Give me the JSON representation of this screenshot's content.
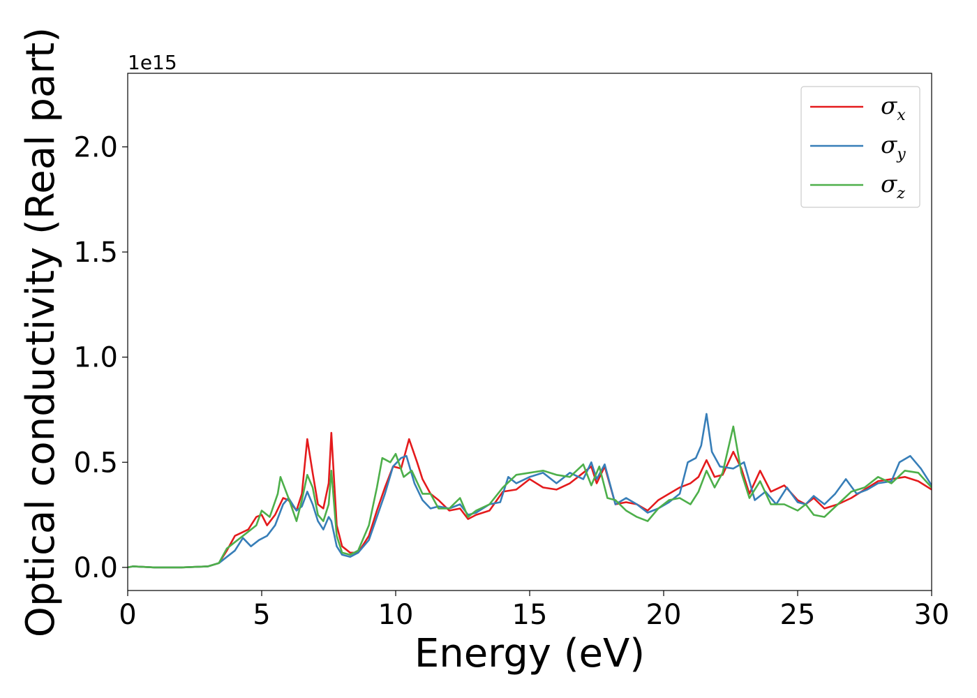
{
  "chart_data": {
    "type": "line",
    "title": "",
    "xlabel": "Energy (eV)",
    "ylabel": "Optical conductivity (Real part)",
    "y_offset_label": "1e15",
    "xlim": [
      0,
      30
    ],
    "ylim": [
      -0.11,
      2.35
    ],
    "x_ticks": [
      0,
      5,
      10,
      15,
      20,
      25,
      30
    ],
    "x_tick_labels": [
      "0",
      "5",
      "10",
      "15",
      "20",
      "25",
      "30"
    ],
    "y_ticks": [
      0.0,
      0.5,
      1.0,
      1.5,
      2.0
    ],
    "y_tick_labels": [
      "0.0",
      "0.5",
      "1.0",
      "1.5",
      "2.0"
    ],
    "grid": false,
    "legend_position": "top-right",
    "series": [
      {
        "name": "σx",
        "symbol": "σ",
        "subscript": "x",
        "color": "#e41a1c",
        "x": [
          0,
          0.2,
          1,
          2,
          3,
          3.4,
          3.7,
          4,
          4.5,
          4.8,
          5.0,
          5.2,
          5.5,
          5.8,
          6.0,
          6.3,
          6.5,
          6.7,
          6.9,
          7.1,
          7.3,
          7.5,
          7.6,
          7.8,
          8.0,
          8.3,
          8.6,
          9.0,
          9.3,
          9.6,
          9.9,
          10.2,
          10.5,
          10.8,
          11.0,
          11.3,
          11.6,
          12.0,
          12.4,
          12.7,
          13.0,
          13.5,
          14.0,
          14.5,
          15.0,
          15.5,
          16.0,
          16.5,
          17.0,
          17.3,
          17.5,
          17.8,
          18.2,
          18.6,
          19.0,
          19.4,
          19.8,
          20.2,
          20.6,
          21.0,
          21.3,
          21.6,
          21.9,
          22.2,
          22.6,
          22.9,
          23.2,
          23.6,
          24.0,
          24.5,
          25.0,
          25.3,
          25.6,
          26.0,
          26.5,
          27.0,
          27.5,
          28.0,
          28.5,
          29.0,
          29.5,
          30.0
        ],
        "y": [
          0.0,
          0.005,
          0.0,
          0.0,
          0.005,
          0.02,
          0.08,
          0.15,
          0.18,
          0.24,
          0.25,
          0.2,
          0.25,
          0.33,
          0.32,
          0.27,
          0.35,
          0.61,
          0.45,
          0.3,
          0.28,
          0.4,
          0.64,
          0.2,
          0.1,
          0.07,
          0.07,
          0.15,
          0.27,
          0.38,
          0.48,
          0.47,
          0.61,
          0.5,
          0.42,
          0.35,
          0.32,
          0.27,
          0.28,
          0.23,
          0.25,
          0.27,
          0.36,
          0.37,
          0.42,
          0.38,
          0.37,
          0.4,
          0.45,
          0.48,
          0.4,
          0.48,
          0.3,
          0.31,
          0.3,
          0.27,
          0.32,
          0.35,
          0.38,
          0.4,
          0.43,
          0.51,
          0.43,
          0.44,
          0.55,
          0.47,
          0.35,
          0.46,
          0.36,
          0.39,
          0.32,
          0.3,
          0.33,
          0.28,
          0.3,
          0.33,
          0.37,
          0.41,
          0.42,
          0.43,
          0.41,
          0.37
        ]
      },
      {
        "name": "σy",
        "symbol": "σ",
        "subscript": "y",
        "color": "#377eb8",
        "x": [
          0,
          0.2,
          1,
          2,
          3,
          3.4,
          3.7,
          4,
          4.3,
          4.6,
          4.9,
          5.2,
          5.5,
          5.8,
          6.0,
          6.3,
          6.5,
          6.7,
          6.9,
          7.1,
          7.3,
          7.5,
          7.6,
          7.8,
          8.0,
          8.3,
          8.6,
          9.0,
          9.3,
          9.6,
          9.9,
          10.2,
          10.4,
          10.7,
          11.0,
          11.3,
          11.6,
          12.0,
          12.4,
          12.7,
          13.0,
          13.5,
          13.9,
          14.2,
          14.5,
          15.0,
          15.5,
          16.0,
          16.5,
          17.0,
          17.3,
          17.5,
          17.8,
          18.2,
          18.6,
          19.0,
          19.4,
          19.8,
          20.2,
          20.6,
          20.9,
          21.2,
          21.4,
          21.6,
          21.8,
          22.1,
          22.6,
          23.0,
          23.4,
          23.8,
          24.2,
          24.6,
          25.0,
          25.3,
          25.6,
          26.0,
          26.4,
          26.8,
          27.2,
          27.6,
          28.0,
          28.5,
          28.8,
          29.2,
          29.6,
          30.0
        ],
        "y": [
          0.0,
          0.005,
          0.0,
          0.0,
          0.005,
          0.02,
          0.05,
          0.08,
          0.14,
          0.1,
          0.13,
          0.15,
          0.2,
          0.3,
          0.33,
          0.27,
          0.29,
          0.36,
          0.3,
          0.22,
          0.18,
          0.24,
          0.22,
          0.1,
          0.06,
          0.05,
          0.07,
          0.13,
          0.24,
          0.35,
          0.48,
          0.52,
          0.53,
          0.4,
          0.32,
          0.28,
          0.29,
          0.28,
          0.3,
          0.25,
          0.26,
          0.3,
          0.31,
          0.43,
          0.4,
          0.43,
          0.45,
          0.4,
          0.45,
          0.42,
          0.5,
          0.42,
          0.49,
          0.3,
          0.33,
          0.3,
          0.26,
          0.28,
          0.31,
          0.35,
          0.5,
          0.52,
          0.58,
          0.73,
          0.55,
          0.48,
          0.47,
          0.5,
          0.32,
          0.36,
          0.3,
          0.38,
          0.31,
          0.3,
          0.34,
          0.3,
          0.35,
          0.42,
          0.35,
          0.37,
          0.4,
          0.41,
          0.5,
          0.53,
          0.47,
          0.39
        ]
      },
      {
        "name": "σz",
        "symbol": "σ",
        "subscript": "z",
        "color": "#4daf4a",
        "x": [
          0,
          0.2,
          1,
          2,
          3,
          3.4,
          3.7,
          4,
          4.5,
          4.8,
          5.0,
          5.3,
          5.6,
          5.7,
          6.0,
          6.3,
          6.5,
          6.7,
          6.9,
          7.1,
          7.3,
          7.5,
          7.6,
          7.8,
          8.0,
          8.3,
          8.6,
          9.0,
          9.3,
          9.5,
          9.8,
          10.0,
          10.3,
          10.6,
          11.0,
          11.3,
          11.6,
          12.0,
          12.4,
          12.7,
          13.0,
          13.5,
          14.0,
          14.5,
          15.0,
          15.5,
          16.0,
          16.5,
          17.0,
          17.3,
          17.6,
          17.9,
          18.2,
          18.6,
          19.0,
          19.4,
          19.8,
          20.2,
          20.6,
          21.0,
          21.3,
          21.6,
          21.9,
          22.2,
          22.6,
          22.9,
          23.2,
          23.6,
          24.0,
          24.5,
          25.0,
          25.3,
          25.6,
          26.0,
          26.5,
          27.0,
          27.5,
          28.0,
          28.5,
          29.0,
          29.5,
          30.0
        ],
        "y": [
          0.0,
          0.005,
          0.0,
          0.0,
          0.005,
          0.02,
          0.09,
          0.12,
          0.17,
          0.2,
          0.27,
          0.24,
          0.35,
          0.43,
          0.33,
          0.22,
          0.32,
          0.44,
          0.38,
          0.25,
          0.22,
          0.3,
          0.46,
          0.15,
          0.07,
          0.06,
          0.08,
          0.2,
          0.38,
          0.52,
          0.5,
          0.54,
          0.43,
          0.46,
          0.35,
          0.35,
          0.28,
          0.28,
          0.33,
          0.24,
          0.27,
          0.3,
          0.38,
          0.44,
          0.45,
          0.46,
          0.44,
          0.43,
          0.49,
          0.39,
          0.48,
          0.33,
          0.32,
          0.27,
          0.24,
          0.22,
          0.28,
          0.32,
          0.33,
          0.3,
          0.36,
          0.46,
          0.38,
          0.45,
          0.67,
          0.45,
          0.33,
          0.41,
          0.3,
          0.3,
          0.27,
          0.3,
          0.25,
          0.24,
          0.3,
          0.36,
          0.38,
          0.43,
          0.4,
          0.46,
          0.45,
          0.38
        ]
      }
    ]
  }
}
